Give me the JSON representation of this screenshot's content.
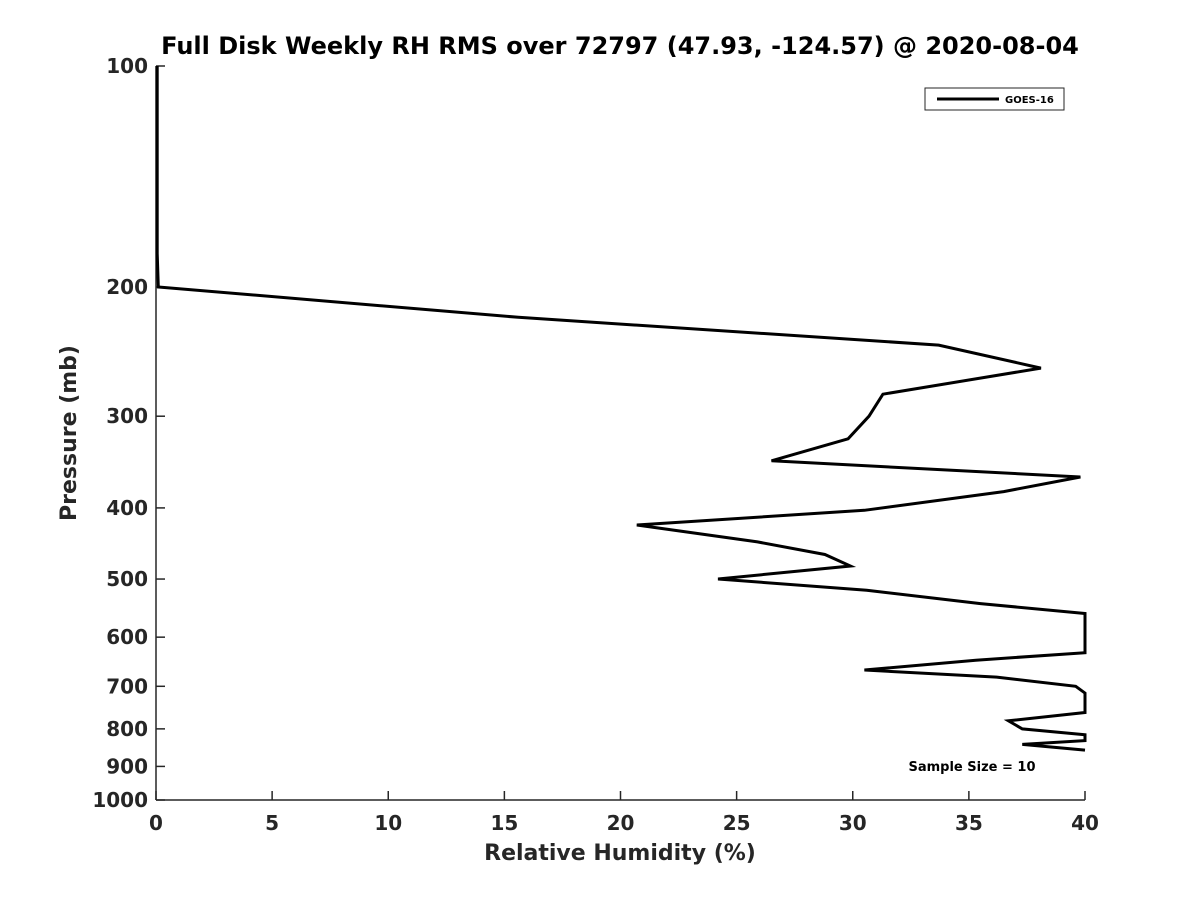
{
  "chart_data": {
    "type": "line",
    "title": "Full Disk Weekly RH RMS over 72797 (47.93, -124.57) @ 2020-08-04",
    "xlabel": "Relative Humidity (%)",
    "ylabel": "Pressure (mb)",
    "xlim": [
      0,
      40
    ],
    "ylim": [
      100,
      1000
    ],
    "y_scale": "log",
    "y_reversed": true,
    "grid": false,
    "legend_position": "top-right",
    "x_ticks": [
      "0",
      "5",
      "10",
      "15",
      "20",
      "25",
      "30",
      "35",
      "40"
    ],
    "x_tick_values": [
      0,
      5,
      10,
      15,
      20,
      25,
      30,
      35,
      40
    ],
    "y_ticks": [
      "100",
      "200",
      "300",
      "400",
      "500",
      "600",
      "700",
      "800",
      "900",
      "1000"
    ],
    "y_tick_values": [
      100,
      200,
      300,
      400,
      500,
      600,
      700,
      800,
      900,
      1000
    ],
    "series": [
      {
        "name": "GOES-16",
        "color": "#000000",
        "x": [
          0.05,
          0.05,
          0.05,
          0.1,
          15.6,
          33.7,
          38.1,
          31.3,
          30.7,
          29.8,
          26.5,
          39.8,
          36.5,
          30.5,
          20.7,
          25.9,
          28.8,
          29.9,
          24.2,
          30.6,
          35.5,
          40.0,
          40.0,
          35.3,
          30.5,
          36.2,
          39.6,
          40.0,
          40.0,
          36.7,
          37.3,
          40.0,
          40.0,
          37.3,
          40.0
        ],
        "y": [
          100,
          150,
          180,
          200,
          220,
          240,
          258,
          280,
          300,
          322,
          345,
          363,
          380,
          403,
          422,
          445,
          463,
          480,
          500,
          518,
          540,
          557,
          630,
          645,
          665,
          680,
          700,
          715,
          760,
          780,
          800,
          815,
          830,
          840,
          855
        ]
      }
    ]
  },
  "annotation": "Sample Size = 10"
}
